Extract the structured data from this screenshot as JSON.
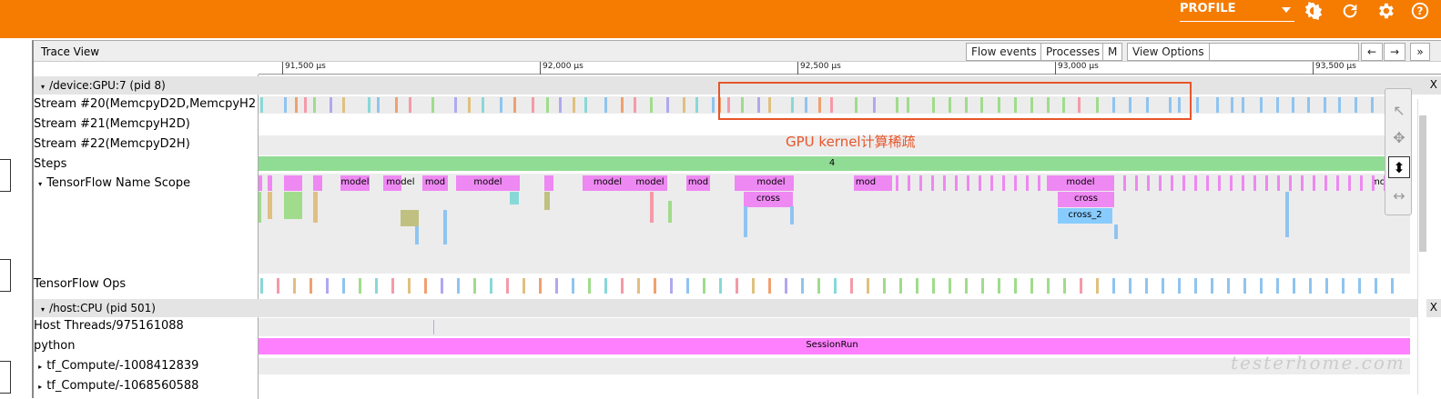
{
  "app": {
    "profile_label": "PROFILE",
    "icons": [
      "brightness-icon",
      "refresh-icon",
      "settings-icon",
      "help-icon"
    ]
  },
  "trace_view": {
    "title": "Trace View",
    "buttons": {
      "flow_events": "Flow events",
      "processes": "Processes",
      "m": "M",
      "view_options": "View Options",
      "prev": "←",
      "next": "→",
      "more": "»"
    },
    "ruler_ticks": [
      "91,500 μs",
      "92,000 μs",
      "92,500 μs",
      "93,000 μs",
      "93,500 μs"
    ],
    "processes": [
      {
        "name": "/device:GPU:7 (pid 8)",
        "close": "X"
      },
      {
        "name": "/host:CPU (pid 501)",
        "close": "X"
      }
    ],
    "rows": {
      "stream20": "Stream #20(MemcpyD2D,MemcpyH2",
      "stream21": "Stream #21(MemcpyH2D)",
      "stream22": "Stream #22(MemcpyD2H)",
      "steps": "Steps",
      "tf_name_scope": "TensorFlow Name Scope",
      "tf_ops": "TensorFlow Ops",
      "host_threads": "Host Threads/975161088",
      "python": "python",
      "tf_compute_1": "tf_Compute/-1008412839",
      "tf_compute_2": "tf_Compute/-1068560588"
    },
    "step_label": "4",
    "session_run": "SessionRun",
    "scope_labels": {
      "model": "model",
      "mod": "mod",
      "mo": "mo",
      "cross": "cross",
      "cross_2": "cross_2"
    }
  },
  "annotation": "GPU kernel计算稀疏",
  "watermark": "testerhome.com",
  "colors": {
    "accent": "#f57c00",
    "annotation": "#e8552a",
    "steps": "#90dc94",
    "model": "#ee88f2",
    "session_run": "#ff80ff",
    "cross_2": "#88ccff"
  }
}
